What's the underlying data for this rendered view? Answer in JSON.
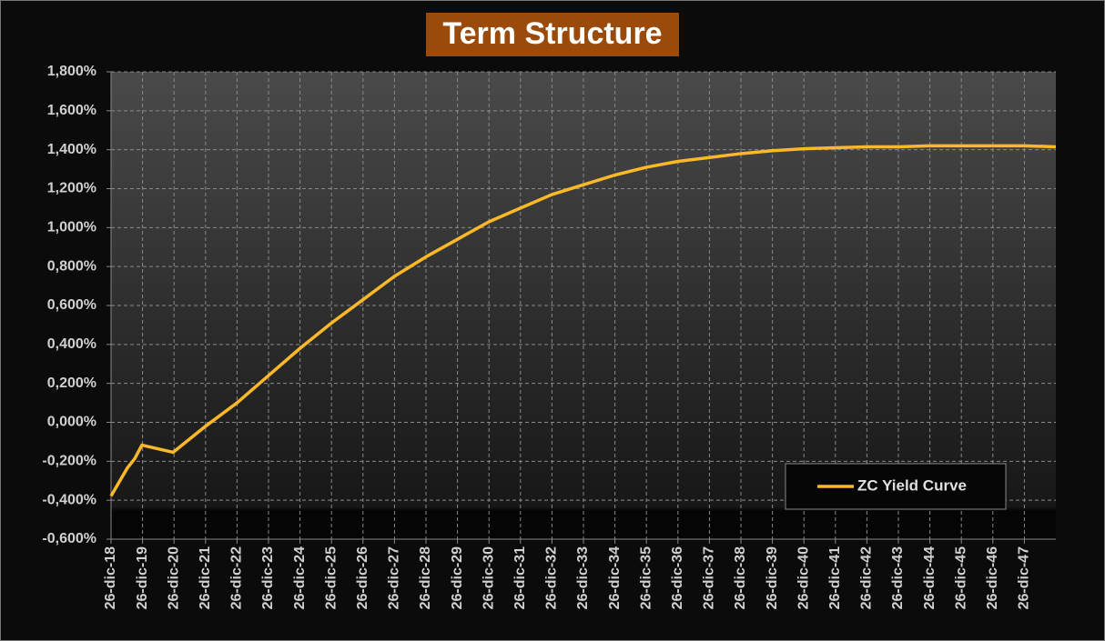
{
  "chart_data": {
    "type": "line",
    "title": "Term Structure",
    "x": [
      2018,
      2018.52,
      2018.75,
      2018.98,
      2019.97,
      2021,
      2022,
      2023,
      2024,
      2025,
      2026,
      2027,
      2028,
      2029,
      2030,
      2031,
      2032,
      2033,
      2034,
      2035,
      2036,
      2037,
      2038,
      2039,
      2040,
      2041,
      2042,
      2043,
      2044,
      2045,
      2046,
      2047,
      2048
    ],
    "series": [
      {
        "name": "ZC Yield Curve",
        "color": "#fbb829",
        "values": [
          -0.378,
          -0.234,
          -0.187,
          -0.117,
          -0.154,
          -0.02,
          0.1,
          0.24,
          0.38,
          0.51,
          0.63,
          0.75,
          0.85,
          0.94,
          1.03,
          1.1,
          1.17,
          1.22,
          1.27,
          1.31,
          1.34,
          1.36,
          1.38,
          1.395,
          1.405,
          1.41,
          1.415,
          1.415,
          1.42,
          1.42,
          1.42,
          1.42,
          1.415
        ]
      }
    ],
    "xlim": [
      2018,
      2048
    ],
    "xticks": [
      {
        "value": 2018,
        "label": "26-dic-18"
      },
      {
        "value": 2019,
        "label": "26-dic-19"
      },
      {
        "value": 2020,
        "label": "26-dic-20"
      },
      {
        "value": 2021,
        "label": "26-dic-21"
      },
      {
        "value": 2022,
        "label": "26-dic-22"
      },
      {
        "value": 2023,
        "label": "26-dic-23"
      },
      {
        "value": 2024,
        "label": "26-dic-24"
      },
      {
        "value": 2025,
        "label": "26-dic-25"
      },
      {
        "value": 2026,
        "label": "26-dic-26"
      },
      {
        "value": 2027,
        "label": "26-dic-27"
      },
      {
        "value": 2028,
        "label": "26-dic-28"
      },
      {
        "value": 2029,
        "label": "26-dic-29"
      },
      {
        "value": 2030,
        "label": "26-dic-30"
      },
      {
        "value": 2031,
        "label": "26-dic-31"
      },
      {
        "value": 2032,
        "label": "26-dic-32"
      },
      {
        "value": 2033,
        "label": "26-dic-33"
      },
      {
        "value": 2034,
        "label": "26-dic-34"
      },
      {
        "value": 2035,
        "label": "26-dic-35"
      },
      {
        "value": 2036,
        "label": "26-dic-36"
      },
      {
        "value": 2037,
        "label": "26-dic-37"
      },
      {
        "value": 2038,
        "label": "26-dic-38"
      },
      {
        "value": 2039,
        "label": "26-dic-39"
      },
      {
        "value": 2040,
        "label": "26-dic-40"
      },
      {
        "value": 2041,
        "label": "26-dic-41"
      },
      {
        "value": 2042,
        "label": "26-dic-42"
      },
      {
        "value": 2043,
        "label": "26-dic-43"
      },
      {
        "value": 2044,
        "label": "26-dic-44"
      },
      {
        "value": 2045,
        "label": "26-dic-45"
      },
      {
        "value": 2046,
        "label": "26-dic-46"
      },
      {
        "value": 2047,
        "label": "26-dic-47"
      }
    ],
    "ylim": [
      -0.6,
      1.8
    ],
    "yticks": [
      {
        "value": -0.6,
        "label": "-0,600%"
      },
      {
        "value": -0.4,
        "label": "-0,400%"
      },
      {
        "value": -0.2,
        "label": "-0,200%"
      },
      {
        "value": 0,
        "label": "0,000%"
      },
      {
        "value": 0.2,
        "label": "0,200%"
      },
      {
        "value": 0.4,
        "label": "0,400%"
      },
      {
        "value": 0.6,
        "label": "0,600%"
      },
      {
        "value": 0.8,
        "label": "0,800%"
      },
      {
        "value": 1.0,
        "label": "1,000%"
      },
      {
        "value": 1.2,
        "label": "1,200%"
      },
      {
        "value": 1.4,
        "label": "1,400%"
      },
      {
        "value": 1.6,
        "label": "1,600%"
      },
      {
        "value": 1.8,
        "label": "1,800%"
      }
    ],
    "grid": true,
    "legend": "lower-right"
  }
}
